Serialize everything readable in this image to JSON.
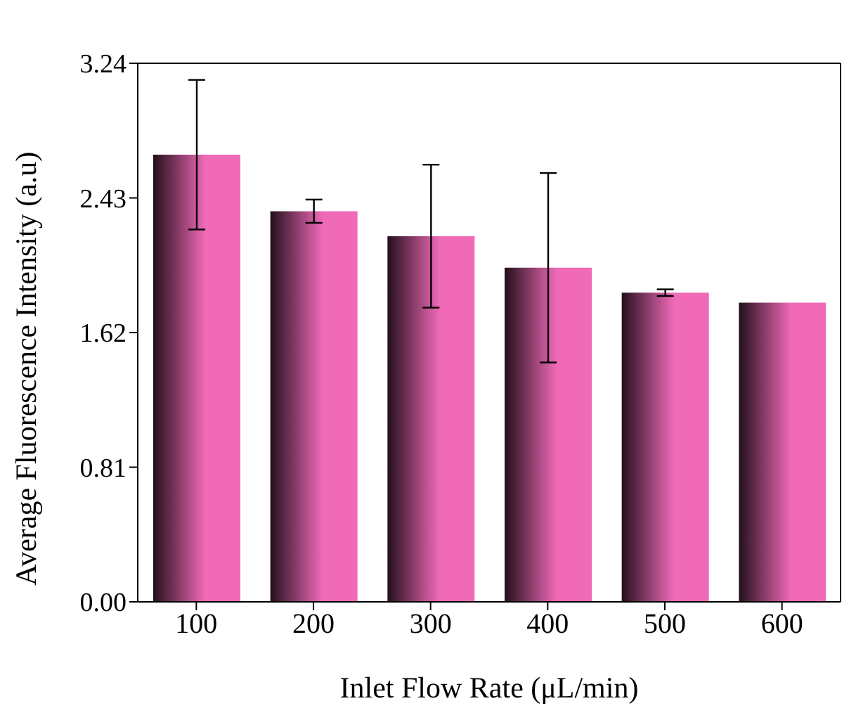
{
  "chart_data": {
    "type": "bar",
    "xlabel": "Inlet Flow Rate (μL/min)",
    "ylabel": "Average Fluorescence Intensity (a.u)",
    "categories": [
      "100",
      "200",
      "300",
      "400",
      "500",
      "600"
    ],
    "values": [
      2.69,
      2.35,
      2.2,
      2.01,
      1.86,
      1.8
    ],
    "errors": [
      0.45,
      0.07,
      0.43,
      0.57,
      0.02,
      null
    ],
    "color": "#f06ab8",
    "ylim": [
      0,
      3.24
    ],
    "yticks": [
      {
        "value": 0,
        "label": "0.00"
      },
      0.81,
      1.62,
      2.43,
      3.24
    ]
  }
}
